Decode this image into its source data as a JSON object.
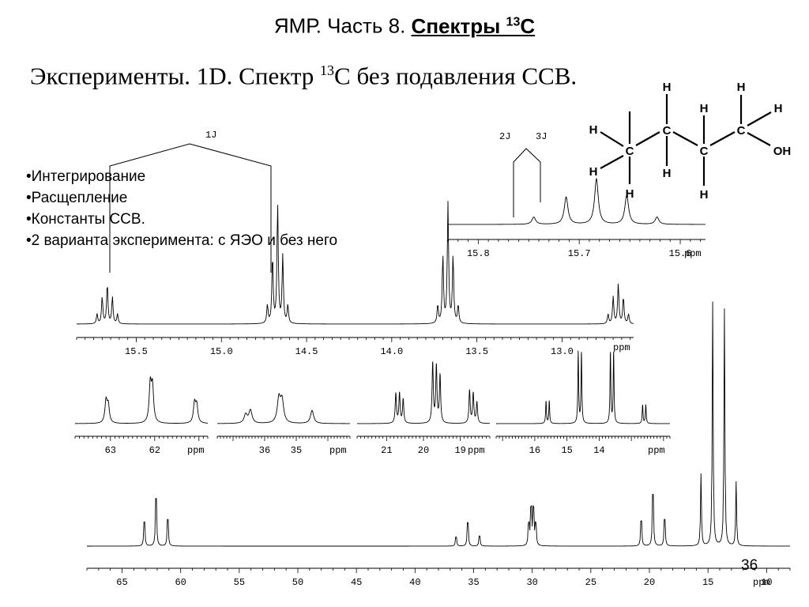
{
  "title": {
    "prefix": "ЯМР. Часть 8. ",
    "spectra_word": "Спектры ",
    "isotope": "13",
    "element": "C"
  },
  "subtitle": {
    "prefix": "Эксперименты. 1D. Спектр ",
    "isotope": "13",
    "suffix": "C без подавления ССВ."
  },
  "bullets": [
    "•Интегрирование",
    "•Расщепление",
    "•Константы ССВ.",
    "•2 варианта эксперимента: с ЯЭО и без него"
  ],
  "slide_number": "36",
  "ppm_label": "ppm",
  "coupling_labels": {
    "one_j": "1J",
    "two_j": "2J",
    "three_j": "3J"
  },
  "molecule": {
    "carbons": [
      "C",
      "C",
      "C",
      "C"
    ],
    "hydrogens": [
      "H",
      "H",
      "H",
      "H",
      "H",
      "H",
      "H",
      "H",
      "H"
    ],
    "hydroxyl": "OH"
  },
  "chart_data": [
    {
      "type": "line",
      "description_of": "proton-decoupled 13C spectrum, full range",
      "x_unit": "ppm",
      "xlim": [
        68,
        8
      ],
      "x_ticks": [
        65,
        60,
        55,
        50,
        45,
        40,
        35,
        30,
        25,
        20,
        15,
        10
      ],
      "peaks": [
        {
          "ppm": 63.1,
          "h": 0.48
        },
        {
          "ppm": 62.1,
          "h": 0.95
        },
        {
          "ppm": 61.1,
          "h": 0.53
        },
        {
          "ppm": 36.5,
          "h": 0.18
        },
        {
          "ppm": 35.5,
          "h": 0.47
        },
        {
          "ppm": 34.5,
          "h": 0.2
        },
        {
          "ppm": 30.3,
          "h": 0.4
        },
        {
          "ppm": 30.1,
          "h": 0.7
        },
        {
          "ppm": 29.9,
          "h": 0.7
        },
        {
          "ppm": 29.7,
          "h": 0.4
        },
        {
          "ppm": 20.7,
          "h": 0.5
        },
        {
          "ppm": 19.7,
          "h": 1.03
        },
        {
          "ppm": 18.7,
          "h": 0.53
        },
        {
          "ppm": 15.6,
          "h": 0.93
        },
        {
          "ppm": 14.6,
          "h": 3.15
        },
        {
          "ppm": 13.6,
          "h": 3.06
        },
        {
          "ppm": 12.6,
          "h": 0.83
        }
      ]
    },
    {
      "type": "line",
      "description_of": "expansion 63-61 ppm",
      "x_unit": "ppm",
      "xlim": [
        63.8,
        60.8
      ],
      "x_ticks": [
        63,
        62
      ],
      "peaks": [
        {
          "ppm": 63.1,
          "h": 0.5
        },
        {
          "ppm": 63.05,
          "h": 0.4
        },
        {
          "ppm": 62.1,
          "h": 0.85
        },
        {
          "ppm": 62.05,
          "h": 0.8
        },
        {
          "ppm": 61.1,
          "h": 0.45
        },
        {
          "ppm": 61.05,
          "h": 0.4
        }
      ]
    },
    {
      "type": "line",
      "description_of": "expansion 36-34 ppm",
      "x_unit": "ppm",
      "xlim": [
        37.5,
        33.3
      ],
      "x_ticks": [
        36,
        35
      ],
      "peaks": [
        {
          "ppm": 36.6,
          "h": 0.2
        },
        {
          "ppm": 36.45,
          "h": 0.3
        },
        {
          "ppm": 35.55,
          "h": 0.55
        },
        {
          "ppm": 35.45,
          "h": 0.5
        },
        {
          "ppm": 34.5,
          "h": 0.3
        }
      ]
    },
    {
      "type": "line",
      "description_of": "expansion 21-18 ppm",
      "x_unit": "ppm",
      "xlim": [
        21.8,
        18.2
      ],
      "x_ticks": [
        21,
        20,
        19
      ],
      "peaks": [
        {
          "ppm": 20.75,
          "h": 0.5
        },
        {
          "ppm": 20.65,
          "h": 0.5
        },
        {
          "ppm": 20.55,
          "h": 0.4
        },
        {
          "ppm": 19.75,
          "h": 1.0
        },
        {
          "ppm": 19.65,
          "h": 0.95
        },
        {
          "ppm": 19.55,
          "h": 0.8
        },
        {
          "ppm": 18.75,
          "h": 0.55
        },
        {
          "ppm": 18.65,
          "h": 0.5
        },
        {
          "ppm": 18.55,
          "h": 0.35
        }
      ]
    },
    {
      "type": "line",
      "description_of": "expansion 16-12 ppm",
      "x_unit": "ppm",
      "xlim": [
        17.2,
        11.8
      ],
      "x_ticks": [
        16,
        15,
        14
      ],
      "peaks": [
        {
          "ppm": 15.65,
          "h": 0.3
        },
        {
          "ppm": 15.55,
          "h": 0.3
        },
        {
          "ppm": 14.65,
          "h": 0.95
        },
        {
          "ppm": 14.55,
          "h": 0.95
        },
        {
          "ppm": 13.65,
          "h": 0.95
        },
        {
          "ppm": 13.55,
          "h": 0.95
        },
        {
          "ppm": 12.65,
          "h": 0.25
        },
        {
          "ppm": 12.55,
          "h": 0.25
        }
      ]
    },
    {
      "type": "line",
      "description_of": "expansion 15.8-12.6 ppm showing 1J quartets",
      "x_unit": "ppm",
      "xlim": [
        15.85,
        12.58
      ],
      "x_ticks": [
        15.5,
        15.0,
        14.5,
        14.0,
        13.5,
        13.0
      ],
      "peaks": [
        {
          "ppm": 15.73,
          "h": 0.08
        },
        {
          "ppm": 15.7,
          "h": 0.22
        },
        {
          "ppm": 15.67,
          "h": 0.33
        },
        {
          "ppm": 15.64,
          "h": 0.22
        },
        {
          "ppm": 15.61,
          "h": 0.08
        },
        {
          "ppm": 14.73,
          "h": 0.15
        },
        {
          "ppm": 14.7,
          "h": 0.55
        },
        {
          "ppm": 14.67,
          "h": 0.98
        },
        {
          "ppm": 14.64,
          "h": 0.55
        },
        {
          "ppm": 14.61,
          "h": 0.15
        },
        {
          "ppm": 13.73,
          "h": 0.15
        },
        {
          "ppm": 13.7,
          "h": 0.55
        },
        {
          "ppm": 13.67,
          "h": 0.98
        },
        {
          "ppm": 13.64,
          "h": 0.55
        },
        {
          "ppm": 13.61,
          "h": 0.15
        },
        {
          "ppm": 12.73,
          "h": 0.08
        },
        {
          "ppm": 12.7,
          "h": 0.22
        },
        {
          "ppm": 12.67,
          "h": 0.33
        },
        {
          "ppm": 12.64,
          "h": 0.22
        },
        {
          "ppm": 12.61,
          "h": 0.08
        }
      ]
    },
    {
      "type": "line",
      "description_of": "expansion 15.8-15.6 ppm showing 2J and 3J",
      "x_unit": "ppm",
      "xlim": [
        15.83,
        15.575
      ],
      "x_ticks": [
        15.8,
        15.7,
        15.6
      ],
      "peaks": [
        {
          "ppm": 15.745,
          "h": 0.08
        },
        {
          "ppm": 15.713,
          "h": 0.3
        },
        {
          "ppm": 15.683,
          "h": 0.5
        },
        {
          "ppm": 15.653,
          "h": 0.32
        },
        {
          "ppm": 15.623,
          "h": 0.08
        }
      ]
    }
  ]
}
